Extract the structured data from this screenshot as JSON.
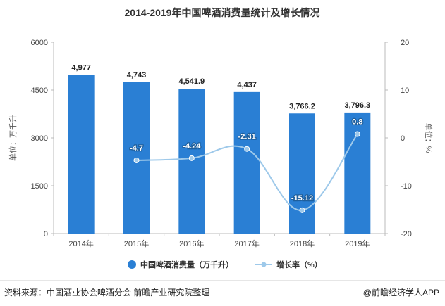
{
  "chart_data": {
    "type": "bar",
    "title": "2014-2019年中国啤酒消费量统计及增长情况",
    "categories": [
      "2014年",
      "2015年",
      "2016年",
      "2017年",
      "2018年",
      "2019年"
    ],
    "series": [
      {
        "name": "中国啤酒消费量（万千升）",
        "type": "bar",
        "axis": "left",
        "values": [
          4977,
          4743,
          4541.9,
          4437,
          3766.2,
          3796.3
        ],
        "labels": [
          "4,977",
          "4,743",
          "4,541.9",
          "4,437",
          "3,766.2",
          "3,796.3"
        ],
        "color": "#2a7fd4"
      },
      {
        "name": "增长率（%）",
        "type": "line",
        "axis": "right",
        "values": [
          null,
          -4.7,
          -4.24,
          -2.31,
          -15.12,
          0.8
        ],
        "labels": [
          "",
          "-4.7",
          "-4.24",
          "-2.31",
          "-15.12",
          "0.8"
        ],
        "color": "#9ec9ea"
      }
    ],
    "ylabel": "单位：万千升",
    "y2label": "单位：%",
    "ylim": [
      0,
      6000
    ],
    "yticks": [
      "0",
      "1500",
      "3000",
      "4500",
      "6000"
    ],
    "y2lim": [
      -20,
      20
    ],
    "y2ticks": [
      "-20",
      "-10",
      "0",
      "10",
      "20"
    ],
    "legend_position": "bottom",
    "grid": false
  },
  "footer": {
    "source": "资料来源：中国酒业协会啤酒分会 前瞻产业研究院整理",
    "brand": "@前瞻经济学人APP"
  },
  "colors": {
    "bar": "#2a7fd4",
    "line": "#9ec9ea",
    "axis": "#bbbbbb",
    "text": "#333333"
  }
}
